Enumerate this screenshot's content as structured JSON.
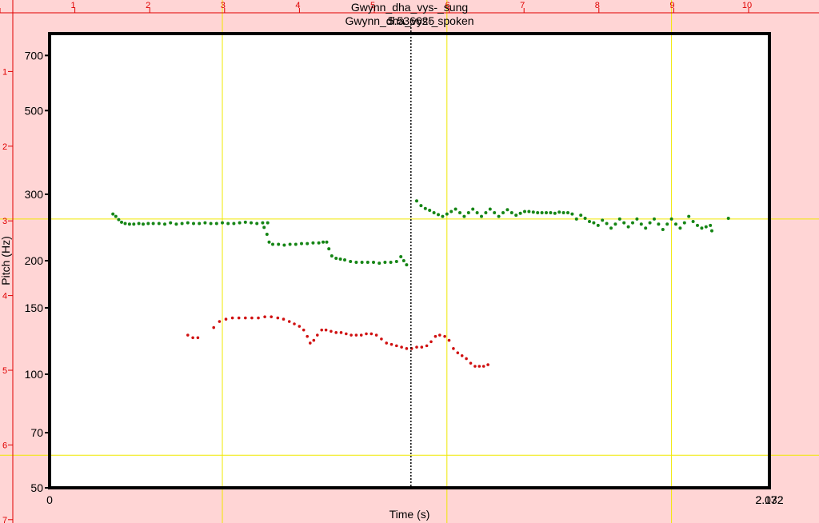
{
  "chart_data": {
    "type": "scatter",
    "titles": [
      "Gwynn_dha_vys-_sung",
      "Gwynn_dha_vys-_spoken",
      "5.536625"
    ],
    "xlabel": "Time (s)",
    "ylabel": "Pitch (Hz)",
    "y_scale": "log",
    "ylim": [
      50,
      800
    ],
    "x_tick_labels": {
      "left": "0",
      "right_a": "2.032",
      "right_b": "2.172"
    },
    "y_ticks": [
      50,
      70,
      100,
      150,
      200,
      300,
      500,
      700
    ],
    "top_ruler_labels": [
      "1",
      "2",
      "3",
      "4",
      "5",
      "6",
      "7",
      "8",
      "9",
      "10"
    ],
    "left_ruler_labels": [
      "1",
      "2",
      "3",
      "4",
      "5",
      "6",
      "7"
    ],
    "cursor_x_norm": 0.502,
    "x_gridlines_norm": [
      0.24,
      0.552,
      0.864
    ],
    "y_gridlines_hz": [
      61,
      258
    ],
    "colors": {
      "background": "#ffd5d5",
      "plot": "#ffffff",
      "sung": "#158515",
      "spoken": "#d01010",
      "grid": "#f0e800",
      "ruler": "#e00000"
    },
    "series": [
      {
        "name": "Gwynn_dha_vys-_sung",
        "points": [
          [
            0.088,
            266
          ],
          [
            0.092,
            262
          ],
          [
            0.096,
            257
          ],
          [
            0.1,
            253
          ],
          [
            0.105,
            251
          ],
          [
            0.111,
            250
          ],
          [
            0.117,
            250
          ],
          [
            0.124,
            251
          ],
          [
            0.13,
            250
          ],
          [
            0.137,
            251
          ],
          [
            0.144,
            251
          ],
          [
            0.152,
            251
          ],
          [
            0.16,
            250
          ],
          [
            0.168,
            252
          ],
          [
            0.176,
            250
          ],
          [
            0.184,
            251
          ],
          [
            0.192,
            252
          ],
          [
            0.2,
            251
          ],
          [
            0.208,
            251
          ],
          [
            0.216,
            252
          ],
          [
            0.224,
            251
          ],
          [
            0.232,
            251
          ],
          [
            0.24,
            252
          ],
          [
            0.248,
            251
          ],
          [
            0.256,
            251
          ],
          [
            0.264,
            252
          ],
          [
            0.272,
            253
          ],
          [
            0.28,
            252
          ],
          [
            0.288,
            251
          ],
          [
            0.296,
            252
          ],
          [
            0.303,
            252
          ],
          [
            0.298,
            245
          ],
          [
            0.302,
            235
          ],
          [
            0.305,
            224
          ],
          [
            0.31,
            221
          ],
          [
            0.318,
            221
          ],
          [
            0.326,
            220
          ],
          [
            0.334,
            221
          ],
          [
            0.342,
            221
          ],
          [
            0.35,
            222
          ],
          [
            0.358,
            222
          ],
          [
            0.366,
            223
          ],
          [
            0.374,
            223
          ],
          [
            0.38,
            224
          ],
          [
            0.385,
            224
          ],
          [
            0.388,
            215
          ],
          [
            0.392,
            206
          ],
          [
            0.398,
            203
          ],
          [
            0.404,
            202
          ],
          [
            0.41,
            201
          ],
          [
            0.418,
            199
          ],
          [
            0.426,
            198
          ],
          [
            0.434,
            198
          ],
          [
            0.442,
            198
          ],
          [
            0.45,
            198
          ],
          [
            0.458,
            197
          ],
          [
            0.466,
            198
          ],
          [
            0.474,
            198
          ],
          [
            0.482,
            199
          ],
          [
            0.488,
            205
          ],
          [
            0.492,
            200
          ],
          [
            0.496,
            195
          ],
          [
            0.51,
            288
          ],
          [
            0.516,
            280
          ],
          [
            0.522,
            275
          ],
          [
            0.528,
            272
          ],
          [
            0.534,
            268
          ],
          [
            0.54,
            265
          ],
          [
            0.546,
            262
          ],
          [
            0.552,
            266
          ],
          [
            0.558,
            270
          ],
          [
            0.564,
            274
          ],
          [
            0.57,
            268
          ],
          [
            0.576,
            262
          ],
          [
            0.582,
            268
          ],
          [
            0.588,
            274
          ],
          [
            0.594,
            268
          ],
          [
            0.6,
            262
          ],
          [
            0.606,
            268
          ],
          [
            0.612,
            274
          ],
          [
            0.618,
            268
          ],
          [
            0.624,
            262
          ],
          [
            0.63,
            268
          ],
          [
            0.636,
            273
          ],
          [
            0.642,
            268
          ],
          [
            0.648,
            264
          ],
          [
            0.654,
            267
          ],
          [
            0.66,
            270
          ],
          [
            0.666,
            270
          ],
          [
            0.672,
            269
          ],
          [
            0.678,
            268
          ],
          [
            0.684,
            268
          ],
          [
            0.69,
            268
          ],
          [
            0.696,
            268
          ],
          [
            0.702,
            267
          ],
          [
            0.708,
            269
          ],
          [
            0.714,
            268
          ],
          [
            0.72,
            268
          ],
          [
            0.726,
            266
          ],
          [
            0.732,
            258
          ],
          [
            0.738,
            264
          ],
          [
            0.744,
            259
          ],
          [
            0.75,
            254
          ],
          [
            0.756,
            252
          ],
          [
            0.762,
            248
          ],
          [
            0.768,
            256
          ],
          [
            0.774,
            251
          ],
          [
            0.78,
            244
          ],
          [
            0.786,
            250
          ],
          [
            0.792,
            258
          ],
          [
            0.798,
            252
          ],
          [
            0.804,
            246
          ],
          [
            0.81,
            252
          ],
          [
            0.816,
            258
          ],
          [
            0.822,
            250
          ],
          [
            0.828,
            244
          ],
          [
            0.834,
            252
          ],
          [
            0.84,
            258
          ],
          [
            0.846,
            250
          ],
          [
            0.852,
            242
          ],
          [
            0.858,
            250
          ],
          [
            0.864,
            258
          ],
          [
            0.87,
            250
          ],
          [
            0.876,
            244
          ],
          [
            0.882,
            252
          ],
          [
            0.888,
            262
          ],
          [
            0.894,
            254
          ],
          [
            0.9,
            248
          ],
          [
            0.906,
            244
          ],
          [
            0.912,
            246
          ],
          [
            0.918,
            248
          ],
          [
            0.92,
            240
          ],
          [
            0.943,
            259
          ]
        ]
      },
      {
        "name": "Gwynn_dha_vys-_spoken",
        "points": [
          [
            0.192,
            127
          ],
          [
            0.199,
            125
          ],
          [
            0.206,
            125
          ],
          [
            0.228,
            133
          ],
          [
            0.236,
            138
          ],
          [
            0.245,
            140
          ],
          [
            0.254,
            141
          ],
          [
            0.263,
            141
          ],
          [
            0.272,
            141
          ],
          [
            0.281,
            141
          ],
          [
            0.29,
            141
          ],
          [
            0.299,
            142
          ],
          [
            0.308,
            142
          ],
          [
            0.317,
            141
          ],
          [
            0.325,
            140
          ],
          [
            0.333,
            138
          ],
          [
            0.34,
            136
          ],
          [
            0.347,
            134
          ],
          [
            0.353,
            131
          ],
          [
            0.358,
            126
          ],
          [
            0.362,
            121
          ],
          [
            0.367,
            123
          ],
          [
            0.372,
            127
          ],
          [
            0.378,
            131
          ],
          [
            0.384,
            131
          ],
          [
            0.391,
            130
          ],
          [
            0.398,
            129
          ],
          [
            0.405,
            129
          ],
          [
            0.412,
            128
          ],
          [
            0.419,
            127
          ],
          [
            0.426,
            127
          ],
          [
            0.433,
            127
          ],
          [
            0.44,
            128
          ],
          [
            0.447,
            128
          ],
          [
            0.454,
            127
          ],
          [
            0.461,
            124
          ],
          [
            0.468,
            121
          ],
          [
            0.475,
            120
          ],
          [
            0.482,
            119
          ],
          [
            0.489,
            118
          ],
          [
            0.496,
            117
          ],
          [
            0.503,
            117
          ],
          [
            0.51,
            118
          ],
          [
            0.517,
            118
          ],
          [
            0.524,
            119
          ],
          [
            0.53,
            122
          ],
          [
            0.536,
            126
          ],
          [
            0.542,
            127
          ],
          [
            0.549,
            126
          ],
          [
            0.555,
            123
          ],
          [
            0.561,
            117
          ],
          [
            0.567,
            114
          ],
          [
            0.573,
            112
          ],
          [
            0.579,
            110
          ],
          [
            0.585,
            107
          ],
          [
            0.591,
            105
          ],
          [
            0.597,
            105
          ],
          [
            0.603,
            105
          ],
          [
            0.609,
            106
          ]
        ]
      }
    ]
  }
}
